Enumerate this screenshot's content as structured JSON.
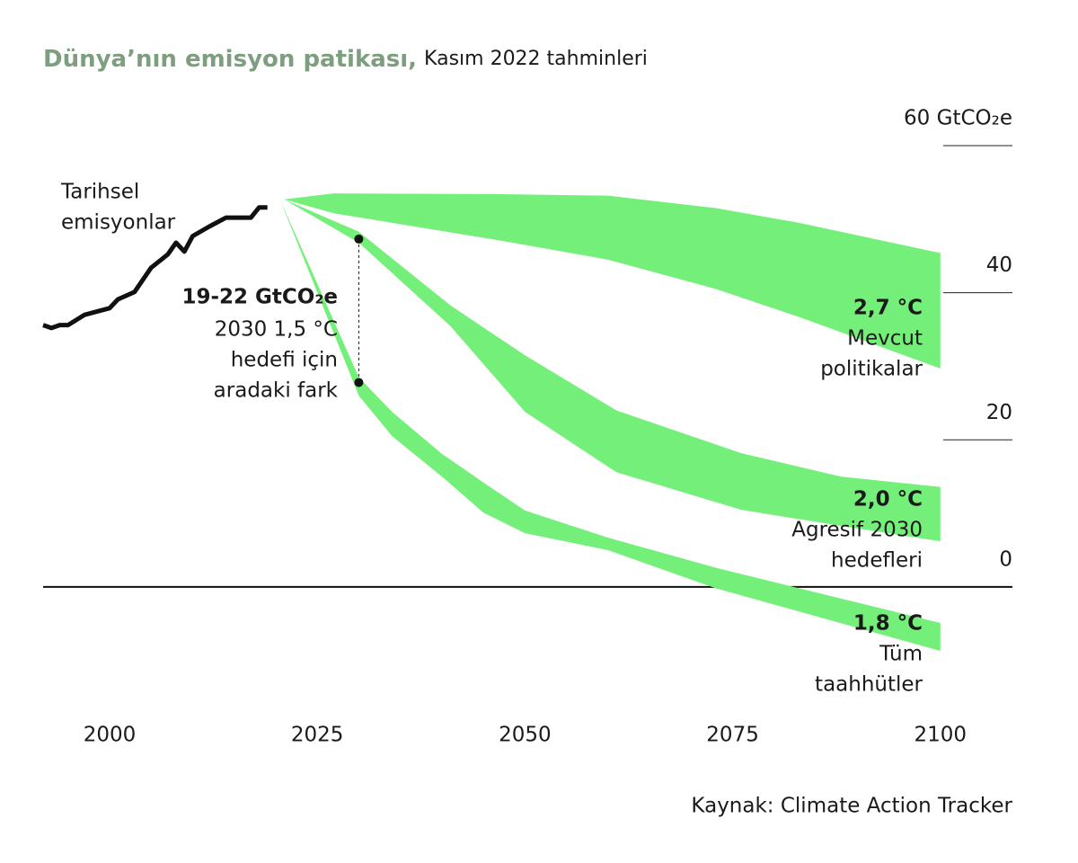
{
  "chart_data": {
    "type": "band",
    "title": "Dünya’nın emisyon patikası,",
    "subtitle": "Kasım 2022 tahminleri",
    "source": "Kaynak:  Climate Action Tracker",
    "xlim": [
      1992,
      2109
    ],
    "ylim": [
      -17,
      60
    ],
    "xticks": [
      2000,
      2025,
      2050,
      2075,
      2100
    ],
    "yticks": [
      0,
      20,
      40,
      {
        "value": 60,
        "label": "60 GtCO₂e"
      }
    ],
    "band_color": "#74f07a",
    "line_color": "#111111",
    "historical": {
      "label_lines": [
        "Tarihsel",
        "emisyonlar"
      ],
      "x": [
        1992,
        1993,
        1994,
        1995,
        1997,
        2000,
        2001,
        2003,
        2005,
        2007,
        2008,
        2009,
        2010,
        2012,
        2014,
        2017,
        2018,
        2019
      ],
      "values": [
        35.6,
        35.2,
        35.6,
        35.6,
        37.0,
        37.9,
        39.1,
        40.1,
        43.4,
        45.2,
        46.8,
        45.6,
        47.7,
        49.0,
        50.2,
        50.2,
        51.6,
        51.6
      ]
    },
    "series": [
      {
        "name": "2,7 °C",
        "label_lines": [
          "Mevcut",
          "politikalar"
        ],
        "x": [
          2021,
          2027,
          2047,
          2060,
          2073,
          2083,
          2100
        ],
        "upper": [
          52.7,
          53.5,
          53.4,
          53.2,
          51.5,
          49.5,
          45.4
        ],
        "lower": [
          52.7,
          50.8,
          47.1,
          44.5,
          40.5,
          36.7,
          29.7
        ]
      },
      {
        "name": "2,0 °C",
        "label_lines": [
          "Agresif 2030",
          "hedefleri"
        ],
        "x": [
          2021,
          2030,
          2041,
          2050,
          2061,
          2076,
          2088,
          2100
        ],
        "upper": [
          52.7,
          48.3,
          38.3,
          31.5,
          24.0,
          18.2,
          15.0,
          13.6
        ],
        "lower": [
          52.7,
          46.8,
          35.5,
          23.8,
          15.6,
          10.5,
          8.3,
          6.2
        ]
      },
      {
        "name": "1,8 °C",
        "label_lines": [
          "Tüm",
          "taahhütler"
        ],
        "x": [
          2020.5,
          2030,
          2034,
          2040,
          2045,
          2050,
          2060,
          2073,
          2100
        ],
        "upper": [
          52.7,
          28.5,
          23.8,
          18.1,
          14.2,
          10.4,
          6.7,
          2.6,
          -4.9
        ],
        "lower": [
          52.7,
          26.0,
          20.5,
          15.0,
          10.1,
          7.3,
          5.0,
          -0.2,
          -8.7
        ]
      }
    ],
    "gap": {
      "x": 2030,
      "values": [
        47.3,
        27.8
      ],
      "title": "19-22 GtCO₂e",
      "label_lines": [
        "2030 1,5 °C",
        "hedefi için",
        "aradaki fark"
      ]
    }
  }
}
